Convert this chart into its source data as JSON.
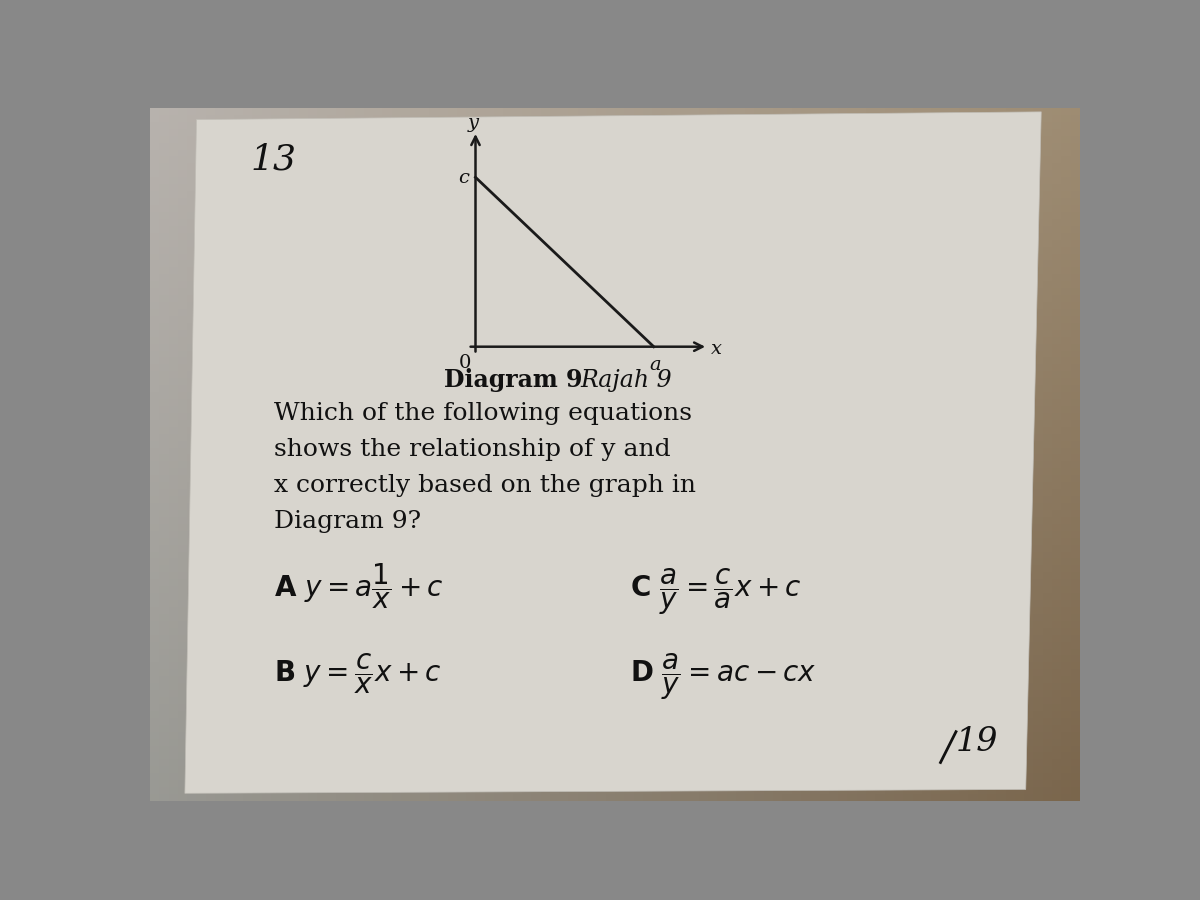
{
  "background_color_tl": "#b0b0b0",
  "background_color_tr": "#9a8060",
  "background_color_br": "#7a6040",
  "background_color_bl": "#a0a0a0",
  "page_color_light": "#d8d5cc",
  "page_color_dark": "#a8a090",
  "question_number": "13",
  "page_number": "19",
  "graph": {
    "origin_label": "0",
    "x_intercept_label": "a",
    "y_intercept_label": "c",
    "x_axis_label": "x",
    "y_axis_label": "y",
    "line_color": "#1a1a1a",
    "axis_color": "#1a1a1a"
  },
  "font_color": "#111111",
  "diagram_title_bold": "Diagram 9",
  "diagram_title_italic": "Rajah 9",
  "question_lines": [
    "Which of the following equations",
    "shows the relationship of y and",
    "x correctly based on the graph in",
    "Diagram 9?"
  ],
  "option_A_text": "A $y=a\\dfrac{1}{x}+c$",
  "option_B_text": "B $y=\\dfrac{c}{x}x+c$",
  "option_C_text": "C $\\dfrac{a}{y}=\\dfrac{c}{a}x+c$",
  "option_D_text": "D $\\dfrac{a}{y}=ac-cx$"
}
